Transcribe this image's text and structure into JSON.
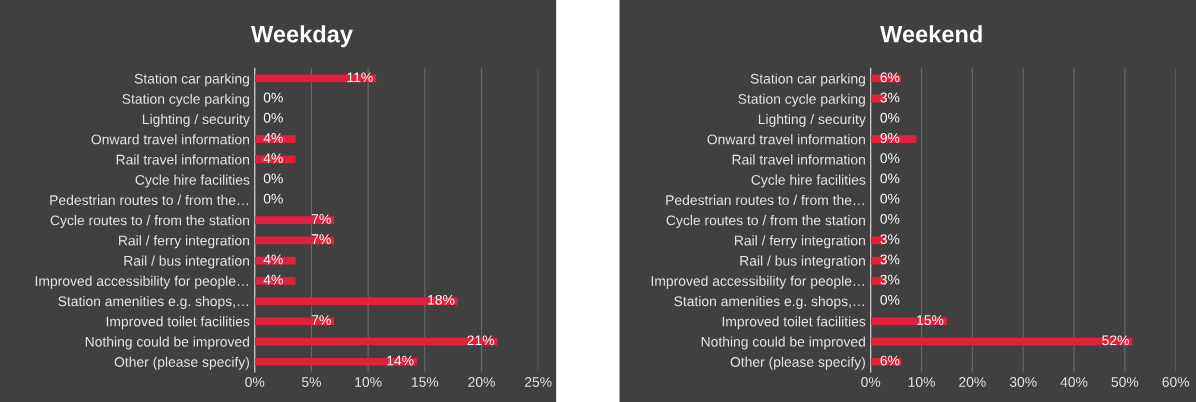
{
  "chart_data": [
    {
      "type": "bar",
      "orientation": "horizontal",
      "title": "Weekday",
      "categories": [
        "Station car parking",
        "Station cycle parking",
        "Lighting / security",
        "Onward travel information",
        "Rail travel information",
        "Cycle hire facilities",
        "Pedestrian routes to / from the…",
        "Cycle routes to / from the station",
        "Rail / ferry integration",
        "Rail / bus integration",
        "Improved accessibility for people…",
        "Station amenities e.g. shops,…",
        "Improved toilet facilities",
        "Nothing could be improved",
        "Other (please specify)"
      ],
      "values": [
        10.7,
        0,
        0,
        3.6,
        3.6,
        0,
        0,
        7,
        7,
        3.6,
        3.6,
        17.9,
        7,
        21.4,
        14.3
      ],
      "value_labels": [
        "11%",
        "0%",
        "0%",
        "4%",
        "4%",
        "0%",
        "0%",
        "7%",
        "7%",
        "4%",
        "4%",
        "18%",
        "7%",
        "21%",
        "14%"
      ],
      "color": "#e0203c",
      "xlim": [
        0,
        25
      ],
      "xticks": [
        {
          "value": 0,
          "label": "0%"
        },
        {
          "value": 5,
          "label": "5%"
        },
        {
          "value": 10,
          "label": "10%"
        },
        {
          "value": 15,
          "label": "15%"
        },
        {
          "value": 20,
          "label": "20%"
        },
        {
          "value": 25,
          "label": "25%"
        }
      ],
      "grid": "x",
      "legend": false
    },
    {
      "type": "bar",
      "orientation": "horizontal",
      "title": "Weekend",
      "categories": [
        "Station car parking",
        "Station cycle parking",
        "Lighting / security",
        "Onward travel information",
        "Rail travel information",
        "Cycle hire facilities",
        "Pedestrian routes to / from the…",
        "Cycle routes to / from the station",
        "Rail / ferry integration",
        "Rail / bus integration",
        "Improved accessibility for people…",
        "Station amenities e.g. shops,…",
        "Improved toilet facilities",
        "Nothing could be improved",
        "Other (please specify)"
      ],
      "values": [
        6,
        3,
        0,
        9,
        0,
        0,
        0,
        0,
        3,
        3,
        3,
        0,
        15,
        51.5,
        6
      ],
      "value_labels": [
        "6%",
        "3%",
        "0%",
        "9%",
        "0%",
        "0%",
        "0%",
        "0%",
        "3%",
        "3%",
        "3%",
        "0%",
        "15%",
        "52%",
        "6%"
      ],
      "color": "#e0203c",
      "xlim": [
        0,
        60
      ],
      "xticks": [
        {
          "value": 0,
          "label": "0%"
        },
        {
          "value": 10,
          "label": "10%"
        },
        {
          "value": 20,
          "label": "20%"
        },
        {
          "value": 30,
          "label": "30%"
        },
        {
          "value": 40,
          "label": "40%"
        },
        {
          "value": 50,
          "label": "50%"
        },
        {
          "value": 60,
          "label": "60%"
        }
      ],
      "grid": "x",
      "legend": false
    }
  ]
}
